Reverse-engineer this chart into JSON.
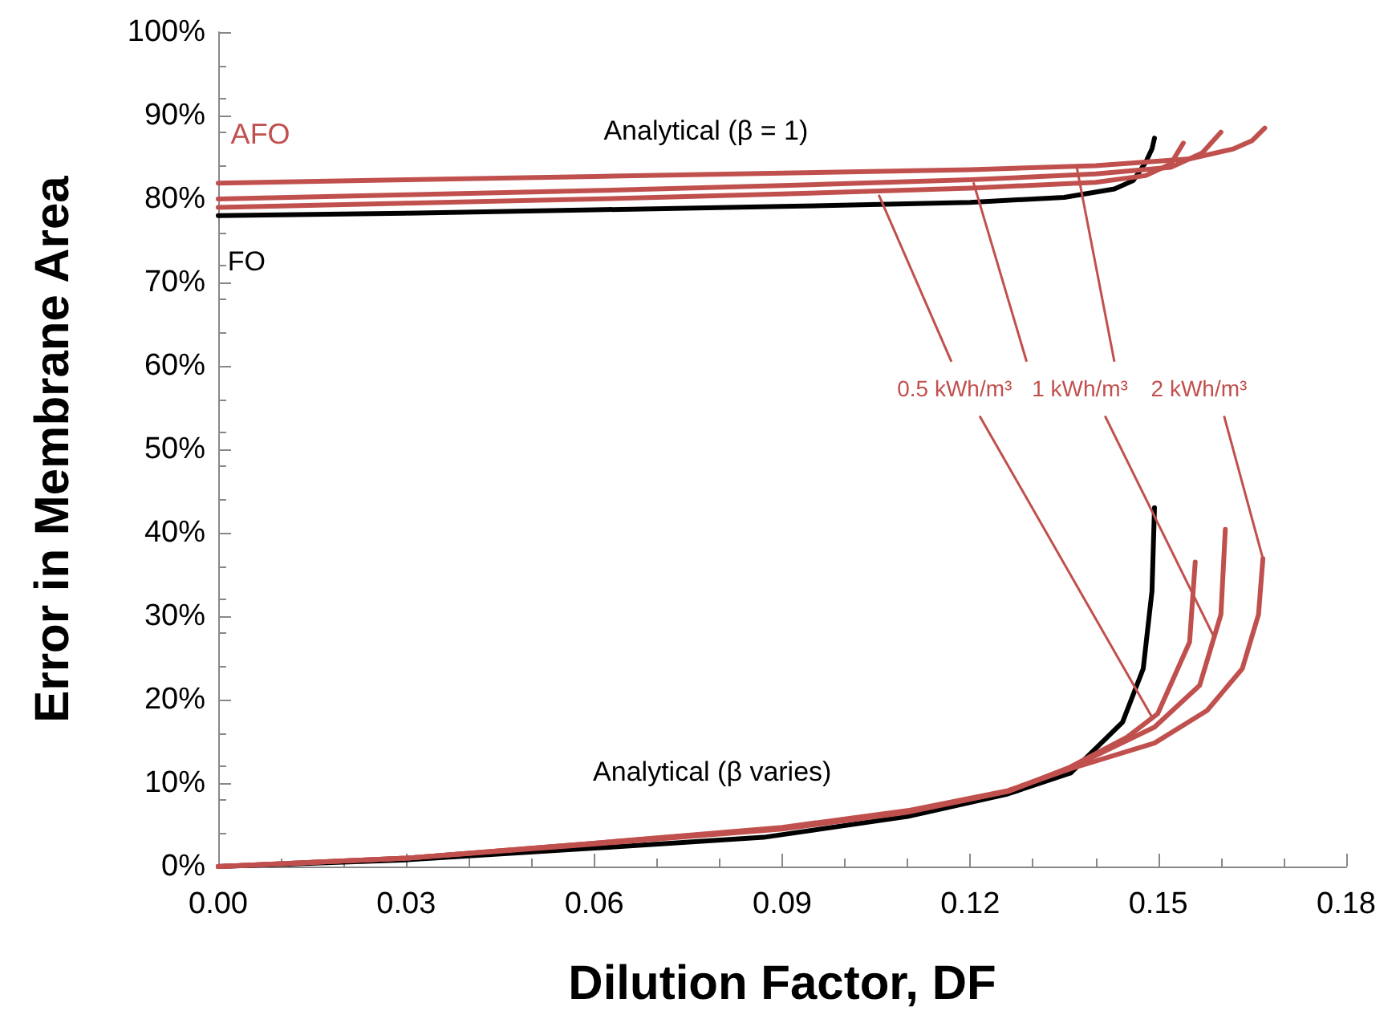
{
  "chart_data": {
    "type": "line",
    "xlabel": "Dilution Factor, DF",
    "ylabel": "Error in Membrane Area",
    "xlim": [
      0,
      0.18
    ],
    "ylim": [
      0,
      100
    ],
    "xticks": [
      {
        "value": 0,
        "label": "0.00"
      },
      {
        "value": 0.03,
        "label": "0.03"
      },
      {
        "value": 0.06,
        "label": "0.06"
      },
      {
        "value": 0.09,
        "label": "0.09"
      },
      {
        "value": 0.12,
        "label": "0.12"
      },
      {
        "value": 0.15,
        "label": "0.15"
      },
      {
        "value": 0.18,
        "label": "0.18"
      }
    ],
    "yticks": [
      {
        "value": 0,
        "label": "0%"
      },
      {
        "value": 10,
        "label": "10%"
      },
      {
        "value": 20,
        "label": "20%"
      },
      {
        "value": 30,
        "label": "30%"
      },
      {
        "value": 40,
        "label": "40%"
      },
      {
        "value": 50,
        "label": "50%"
      },
      {
        "value": 60,
        "label": "60%"
      },
      {
        "value": 70,
        "label": "70%"
      },
      {
        "value": 80,
        "label": "80%"
      },
      {
        "value": 90,
        "label": "90%"
      },
      {
        "value": 100,
        "label": "100%"
      }
    ],
    "grid": false,
    "marker": "none",
    "line_style": "solid",
    "series": [
      {
        "color": "#000000",
        "x": [
          0,
          0.03,
          0.06,
          0.09,
          0.12,
          0.135,
          0.143,
          0.146,
          0.148,
          0.149,
          0.1494
        ],
        "values": [
          78,
          78.3,
          78.7,
          79.1,
          79.6,
          80.2,
          81.2,
          82.2,
          84.4,
          86,
          87.3
        ]
      },
      {
        "color": "#c0504d",
        "x": [
          0,
          0.03,
          0.06,
          0.09,
          0.12,
          0.14,
          0.148,
          0.152,
          0.154
        ],
        "values": [
          79,
          79.5,
          80,
          80.6,
          81.3,
          82,
          82.8,
          84.2,
          86.7
        ]
      },
      {
        "color": "#c0504d",
        "x": [
          0,
          0.03,
          0.06,
          0.09,
          0.12,
          0.14,
          0.152,
          0.157,
          0.16
        ],
        "values": [
          80,
          80.5,
          81,
          81.6,
          82.3,
          83,
          83.8,
          85.5,
          88
        ]
      },
      {
        "color": "#c0504d",
        "x": [
          0,
          0.03,
          0.06,
          0.09,
          0.12,
          0.14,
          0.155,
          0.162,
          0.165,
          0.167
        ],
        "values": [
          81.9,
          82.3,
          82.7,
          83.1,
          83.5,
          84,
          84.8,
          86,
          87,
          88.5
        ]
      },
      {
        "color": "#000000",
        "x": [
          0,
          0.03,
          0.06,
          0.087,
          0.11,
          0.126,
          0.136,
          0.1443,
          0.1476,
          0.149,
          0.1494
        ],
        "values": [
          0,
          0.8,
          2.2,
          3.5,
          6,
          8.7,
          11.2,
          17.3,
          23.7,
          33,
          43
        ]
      },
      {
        "color": "#c0504d",
        "x": [
          0,
          0.03,
          0.06,
          0.09,
          0.11,
          0.126,
          0.1359,
          0.145,
          0.1499,
          0.155,
          0.1559
        ],
        "values": [
          0,
          1,
          2.7,
          4.5,
          6.5,
          9,
          11.9,
          15.5,
          18.3,
          26.9,
          36.5
        ]
      },
      {
        "color": "#c0504d",
        "x": [
          0,
          0.03,
          0.06,
          0.09,
          0.11,
          0.126,
          0.1359,
          0.1494,
          0.1566,
          0.16,
          0.1607
        ],
        "values": [
          0,
          1,
          2.8,
          4.6,
          6.6,
          9,
          11.8,
          16.7,
          21.7,
          30.2,
          40.4
        ]
      },
      {
        "color": "#c0504d",
        "x": [
          0,
          0.03,
          0.06,
          0.09,
          0.11,
          0.126,
          0.1359,
          0.1494,
          0.1578,
          0.1634,
          0.166,
          0.1667
        ],
        "values": [
          0,
          1,
          2.8,
          4.7,
          6.7,
          9.1,
          11.7,
          14.8,
          18.7,
          23.7,
          30.2,
          36.9
        ]
      }
    ],
    "annotations": [
      "AFO",
      "FO",
      "Analytical (β = 1)",
      "Analytical (β varies)",
      {
        "text": "0.5 kWh/m³",
        "x": 0.149,
        "y": 17.9
      },
      {
        "text": "1 kWh/m³",
        "x": 0.1589,
        "y": 27.5
      },
      {
        "text": "2 kWh/m³",
        "x": 0.1667,
        "y": 36.9
      }
    ]
  }
}
